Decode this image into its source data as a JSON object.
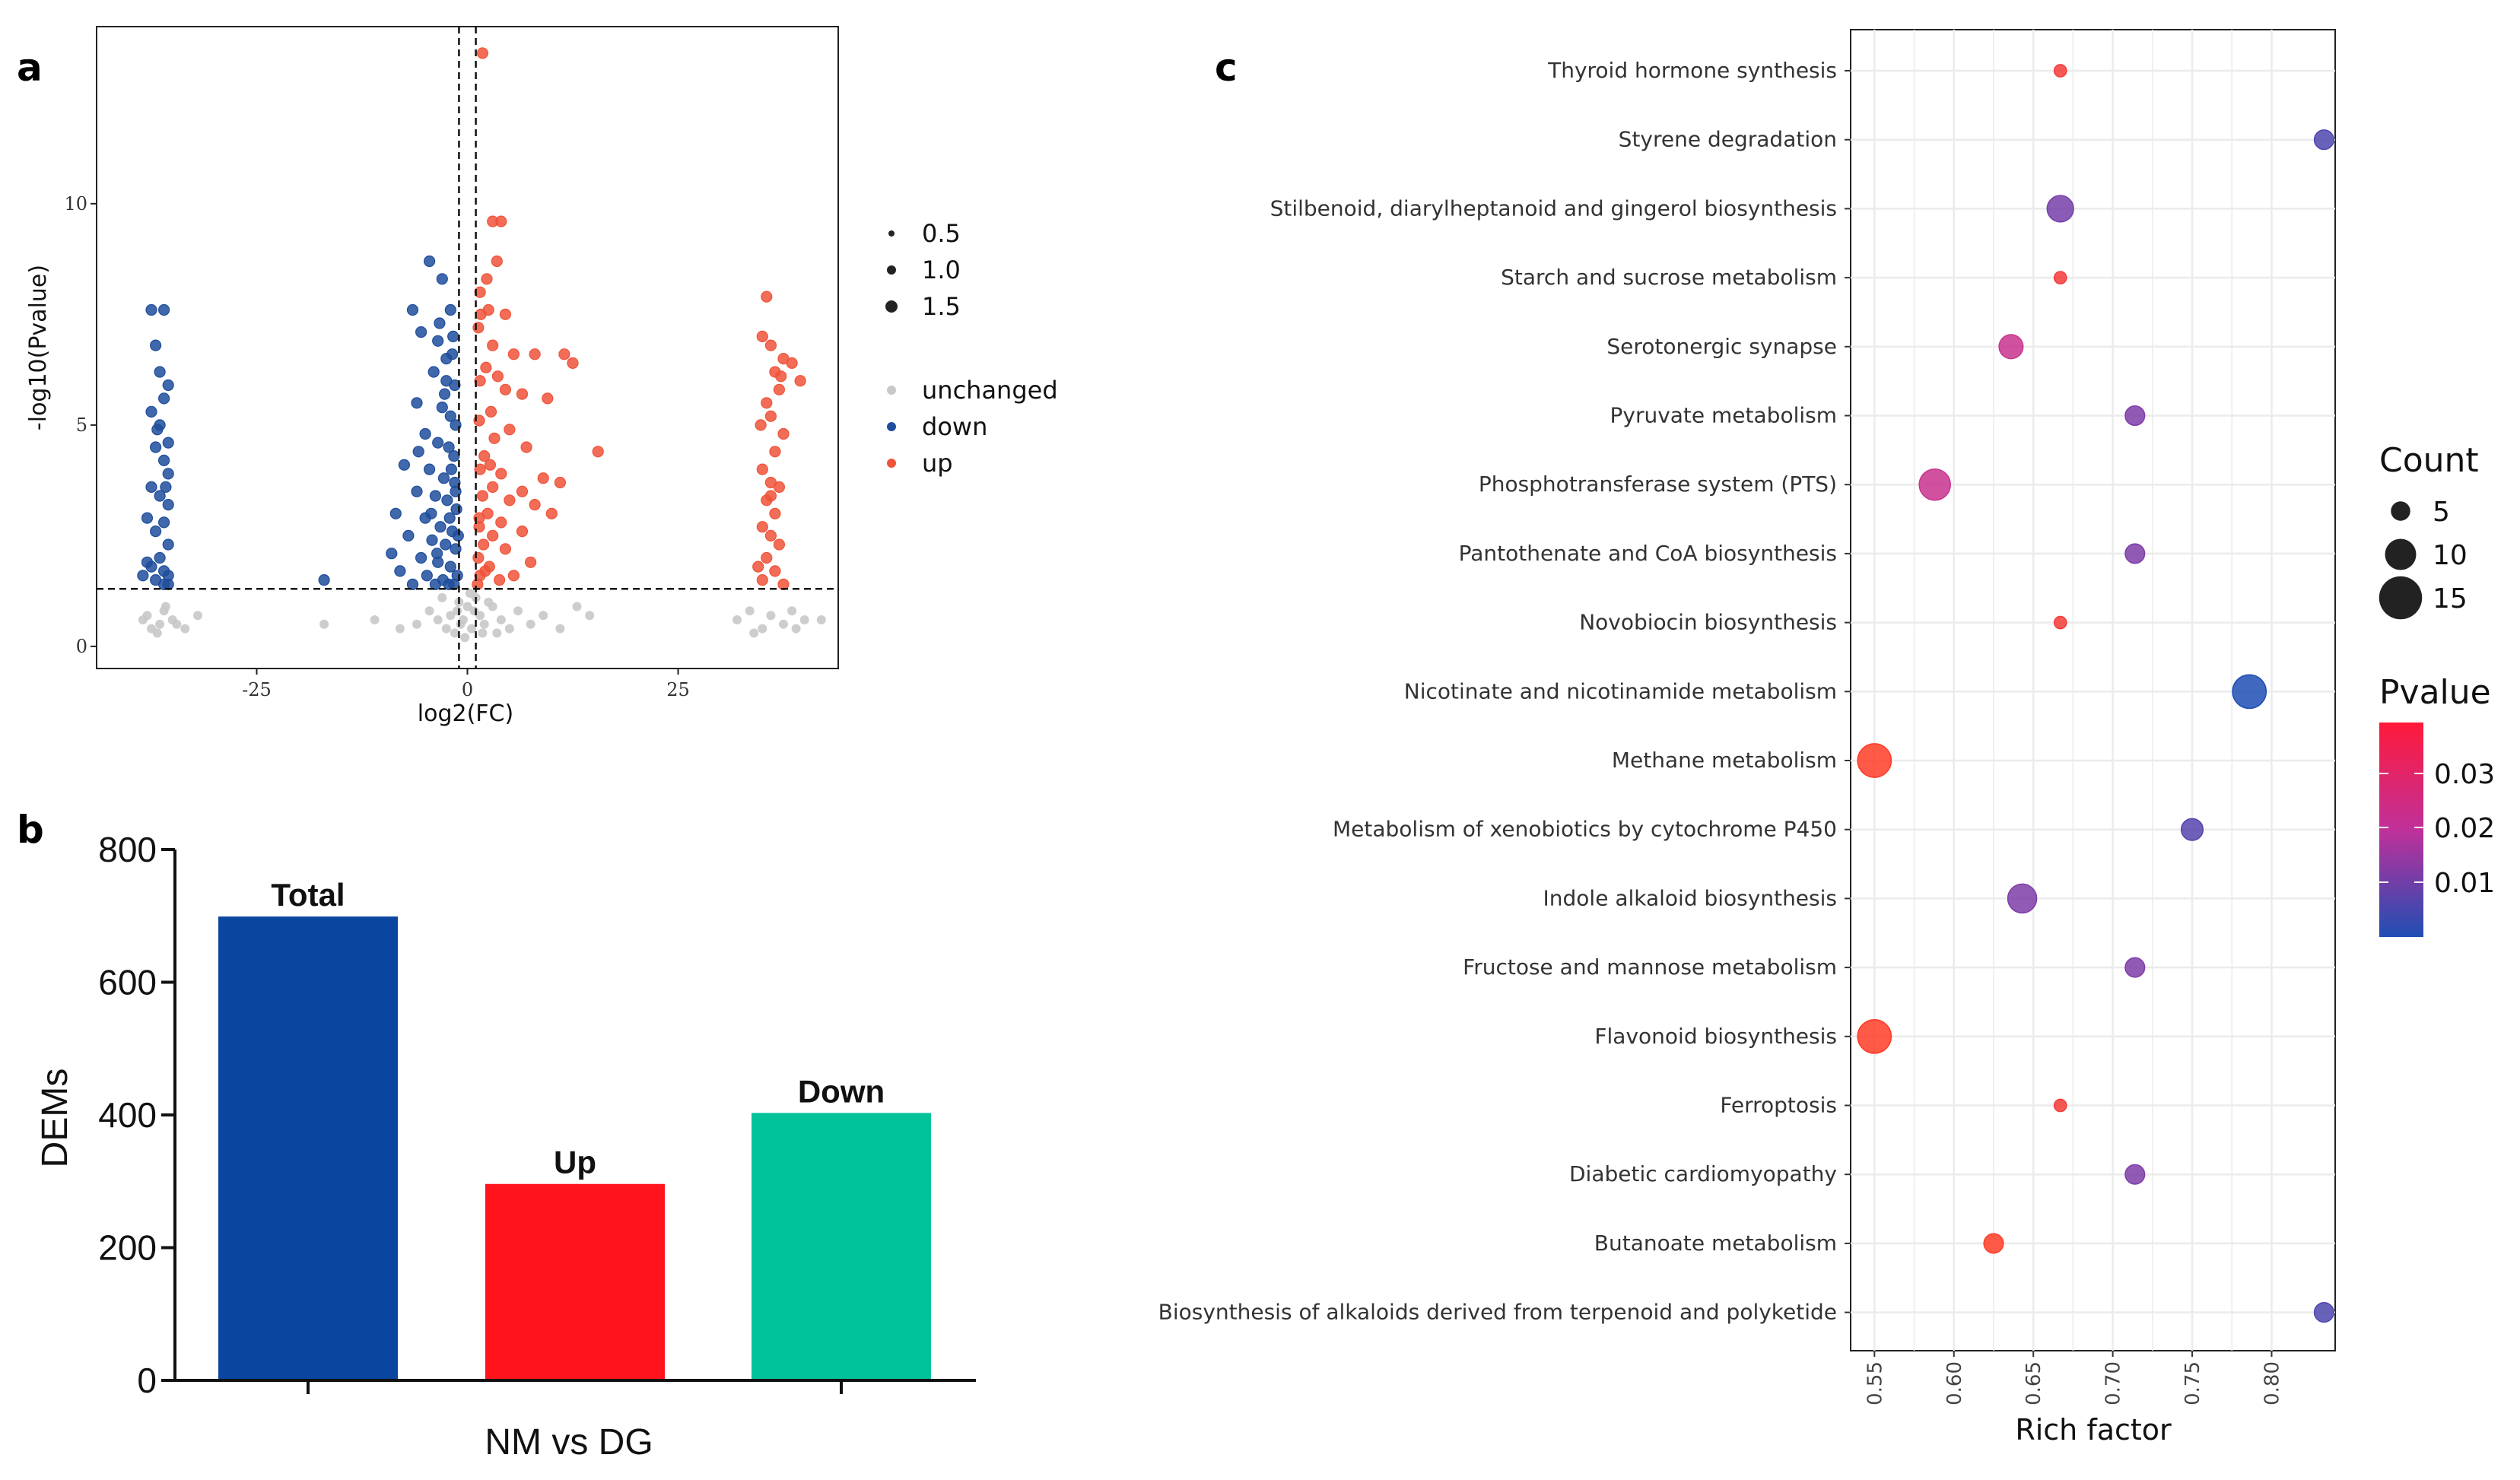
{
  "panel_labels": {
    "a": "a",
    "b": "b",
    "c": "c"
  },
  "chart_data": [
    {
      "type": "scatter",
      "panel": "a",
      "xlabel": "log2(FC)",
      "ylabel": "-log10(Pvalue)",
      "xlim": [
        -44,
        44
      ],
      "ylim": [
        -0.5,
        14
      ],
      "xticks": [
        -25,
        0,
        25
      ],
      "yticks": [
        0,
        5,
        10
      ],
      "threshold_lines": {
        "vertical": [
          -1,
          1
        ],
        "horizontal": 1.3
      },
      "size_legend": [
        "0.5",
        "1.0",
        "1.5"
      ],
      "color_legend": [
        {
          "label": "unchanged",
          "color": "#c8c8c8"
        },
        {
          "label": "down",
          "color": "#1f4e9c"
        },
        {
          "label": "up",
          "color": "#f0533a"
        }
      ],
      "series": [
        {
          "name": "down",
          "color": "#1f4e9c",
          "points": [
            [
              -37.5,
              7.6
            ],
            [
              -36,
              7.6
            ],
            [
              -37,
              6.8
            ],
            [
              -36.5,
              6.2
            ],
            [
              -35.5,
              5.9
            ],
            [
              -36,
              5.6
            ],
            [
              -37.5,
              5.3
            ],
            [
              -36.5,
              5.0
            ],
            [
              -35.5,
              4.6
            ],
            [
              -37,
              4.5
            ],
            [
              -36,
              4.2
            ],
            [
              -35.5,
              3.9
            ],
            [
              -37.5,
              3.6
            ],
            [
              -36.5,
              3.4
            ],
            [
              -35.5,
              3.2
            ],
            [
              -38,
              2.9
            ],
            [
              -36,
              2.8
            ],
            [
              -37,
              2.6
            ],
            [
              -35.5,
              2.3
            ],
            [
              -36.5,
              2.0
            ],
            [
              -37.5,
              1.8
            ],
            [
              -36,
              1.7
            ],
            [
              -35.5,
              1.6
            ],
            [
              -38.5,
              1.6
            ],
            [
              -37,
              1.5
            ],
            [
              -36,
              1.4
            ],
            [
              -35.5,
              1.4
            ],
            [
              -38,
              1.9
            ],
            [
              -36.8,
              4.9
            ],
            [
              -35.8,
              3.6
            ],
            [
              -17,
              1.5
            ],
            [
              -6.5,
              7.6
            ],
            [
              -4.5,
              8.7
            ],
            [
              -3,
              8.3
            ],
            [
              -2,
              7.6
            ],
            [
              -5.5,
              7.1
            ],
            [
              -3.5,
              6.9
            ],
            [
              -1.8,
              6.6
            ],
            [
              -4,
              6.2
            ],
            [
              -2.5,
              6.0
            ],
            [
              -1.5,
              5.9
            ],
            [
              -6,
              5.5
            ],
            [
              -3,
              5.4
            ],
            [
              -2,
              5.2
            ],
            [
              -1.4,
              5.0
            ],
            [
              -5,
              4.8
            ],
            [
              -3.5,
              4.6
            ],
            [
              -2.2,
              4.5
            ],
            [
              -1.6,
              4.3
            ],
            [
              -7.5,
              4.1
            ],
            [
              -4.5,
              4.0
            ],
            [
              -2.8,
              3.8
            ],
            [
              -1.5,
              3.7
            ],
            [
              -6,
              3.5
            ],
            [
              -3.8,
              3.4
            ],
            [
              -2.4,
              3.3
            ],
            [
              -1.3,
              3.1
            ],
            [
              -8.5,
              3.0
            ],
            [
              -5,
              2.9
            ],
            [
              -3.2,
              2.7
            ],
            [
              -1.8,
              2.6
            ],
            [
              -7,
              2.5
            ],
            [
              -4.2,
              2.4
            ],
            [
              -2.6,
              2.3
            ],
            [
              -1.4,
              2.2
            ],
            [
              -9,
              2.1
            ],
            [
              -5.5,
              2.0
            ],
            [
              -3.5,
              1.9
            ],
            [
              -2,
              1.8
            ],
            [
              -8,
              1.7
            ],
            [
              -4.8,
              1.6
            ],
            [
              -2.9,
              1.5
            ],
            [
              -1.6,
              1.4
            ],
            [
              -6.5,
              1.4
            ],
            [
              -3.8,
              1.4
            ],
            [
              -2.2,
              1.4
            ],
            [
              -1.2,
              1.6
            ],
            [
              -1.9,
              4.0
            ],
            [
              -2.7,
              5.7
            ],
            [
              -3.3,
              7.3
            ],
            [
              -1.7,
              7.0
            ],
            [
              -4.3,
              3.0
            ],
            [
              -2.1,
              2.9
            ],
            [
              -1.1,
              2.5
            ],
            [
              -5.8,
              4.4
            ],
            [
              -2.5,
              6.5
            ],
            [
              -1.4,
              3.5
            ],
            [
              -3.6,
              2.1
            ]
          ]
        },
        {
          "name": "up",
          "color": "#f0533a",
          "points": [
            [
              1.8,
              13.4
            ],
            [
              3,
              9.6
            ],
            [
              4,
              9.6
            ],
            [
              3.5,
              8.7
            ],
            [
              1.5,
              8.0
            ],
            [
              2.5,
              7.6
            ],
            [
              4.5,
              7.5
            ],
            [
              1.3,
              7.2
            ],
            [
              3,
              6.8
            ],
            [
              5.5,
              6.6
            ],
            [
              8,
              6.6
            ],
            [
              11.5,
              6.6
            ],
            [
              12.5,
              6.4
            ],
            [
              2.2,
              6.3
            ],
            [
              1.5,
              6.0
            ],
            [
              4.5,
              5.8
            ],
            [
              6.5,
              5.7
            ],
            [
              9.5,
              5.6
            ],
            [
              2.8,
              5.3
            ],
            [
              1.4,
              5.1
            ],
            [
              5,
              4.9
            ],
            [
              3.2,
              4.7
            ],
            [
              7,
              4.5
            ],
            [
              15.5,
              4.4
            ],
            [
              2,
              4.3
            ],
            [
              1.5,
              4.0
            ],
            [
              4,
              3.9
            ],
            [
              9,
              3.8
            ],
            [
              11,
              3.7
            ],
            [
              3,
              3.6
            ],
            [
              6.5,
              3.5
            ],
            [
              1.8,
              3.4
            ],
            [
              5,
              3.3
            ],
            [
              8,
              3.2
            ],
            [
              2.4,
              3.0
            ],
            [
              10,
              3.0
            ],
            [
              4,
              2.8
            ],
            [
              1.4,
              2.7
            ],
            [
              6.5,
              2.6
            ],
            [
              3,
              2.5
            ],
            [
              1.9,
              2.3
            ],
            [
              4.5,
              2.2
            ],
            [
              1.3,
              2.0
            ],
            [
              7.5,
              1.9
            ],
            [
              2.6,
              1.8
            ],
            [
              1.5,
              1.6
            ],
            [
              3.8,
              1.5
            ],
            [
              1.2,
              1.4
            ],
            [
              5.5,
              1.6
            ],
            [
              2.1,
              1.7
            ],
            [
              1.6,
              7.5
            ],
            [
              2.7,
              4.1
            ],
            [
              1.4,
              2.9
            ],
            [
              3.6,
              6.1
            ],
            [
              2.3,
              8.3
            ],
            [
              35.5,
              7.9
            ],
            [
              35,
              7.0
            ],
            [
              36,
              6.8
            ],
            [
              37.5,
              6.5
            ],
            [
              38.5,
              6.4
            ],
            [
              36.5,
              6.2
            ],
            [
              39.5,
              6.0
            ],
            [
              37,
              5.8
            ],
            [
              35.5,
              5.5
            ],
            [
              36,
              5.2
            ],
            [
              37.5,
              4.8
            ],
            [
              36.5,
              4.4
            ],
            [
              35,
              4.0
            ],
            [
              36,
              3.7
            ],
            [
              37,
              3.6
            ],
            [
              35.5,
              3.3
            ],
            [
              36.5,
              3.0
            ],
            [
              35,
              2.7
            ],
            [
              36,
              2.5
            ],
            [
              37,
              2.3
            ],
            [
              35.5,
              2.0
            ],
            [
              34.5,
              1.8
            ],
            [
              36.5,
              1.7
            ],
            [
              35,
              1.5
            ],
            [
              37.5,
              1.4
            ],
            [
              36,
              3.4
            ],
            [
              34.8,
              5.0
            ],
            [
              37.2,
              6.1
            ]
          ]
        },
        {
          "name": "unchanged",
          "color": "#c8c8c8",
          "points": [
            [
              -38,
              0.7
            ],
            [
              -36.5,
              0.5
            ],
            [
              -35,
              0.6
            ],
            [
              -37.5,
              0.4
            ],
            [
              -36,
              0.8
            ],
            [
              -34.5,
              0.5
            ],
            [
              -38.5,
              0.6
            ],
            [
              -33.5,
              0.4
            ],
            [
              -36.8,
              0.3
            ],
            [
              -35.8,
              0.9
            ],
            [
              -32,
              0.7
            ],
            [
              -17,
              0.5
            ],
            [
              -11,
              0.6
            ],
            [
              -8,
              0.4
            ],
            [
              -6,
              0.5
            ],
            [
              -4.5,
              0.8
            ],
            [
              -3,
              1.1
            ],
            [
              -2,
              0.7
            ],
            [
              -1.5,
              0.3
            ],
            [
              -1,
              1.0
            ],
            [
              -0.5,
              0.6
            ],
            [
              0,
              0.9
            ],
            [
              0.5,
              0.4
            ],
            [
              1,
              1.1
            ],
            [
              1.5,
              0.7
            ],
            [
              2,
              0.5
            ],
            [
              3,
              0.9
            ],
            [
              4,
              0.6
            ],
            [
              5,
              0.4
            ],
            [
              6,
              0.8
            ],
            [
              7.5,
              0.5
            ],
            [
              9,
              0.7
            ],
            [
              11,
              0.4
            ],
            [
              13,
              0.9
            ],
            [
              14.5,
              0.7
            ],
            [
              -2.5,
              0.4
            ],
            [
              -0.8,
              0.5
            ],
            [
              0.8,
              0.8
            ],
            [
              2.5,
              1.0
            ],
            [
              -1.2,
              0.8
            ],
            [
              0.3,
              1.2
            ],
            [
              -0.3,
              0.2
            ],
            [
              1.8,
              0.3
            ],
            [
              -3.5,
              0.6
            ],
            [
              3.5,
              0.3
            ],
            [
              32,
              0.6
            ],
            [
              33.5,
              0.8
            ],
            [
              35,
              0.4
            ],
            [
              36,
              0.7
            ],
            [
              37.5,
              0.5
            ],
            [
              38.5,
              0.8
            ],
            [
              40,
              0.6
            ],
            [
              42,
              0.6
            ],
            [
              34,
              0.3
            ],
            [
              39,
              0.4
            ]
          ]
        }
      ]
    },
    {
      "type": "bar",
      "panel": "b",
      "xlabel": "NM vs DG",
      "ylabel": "DEMs",
      "ylim": [
        0,
        800
      ],
      "yticks": [
        0,
        200,
        400,
        600,
        800
      ],
      "categories": [
        "Total",
        "Up",
        "Down"
      ],
      "values": [
        699,
        296,
        403
      ],
      "colors": [
        "#0a46a0",
        "#ff141e",
        "#00c39a"
      ]
    },
    {
      "type": "scatter",
      "panel": "c",
      "xlabel": "Rich factor",
      "ylabel": "",
      "xlim": [
        0.535,
        0.84
      ],
      "xticks": [
        "0.55",
        "0.60",
        "0.65",
        "0.70",
        "0.75",
        "0.80"
      ],
      "pathways": [
        "Thyroid hormone synthesis",
        "Styrene degradation",
        "Stilbenoid, diarylheptanoid and gingerol biosynthesis",
        "Starch and sucrose metabolism",
        "Serotonergic synapse",
        "Pyruvate metabolism",
        "Phosphotransferase system (PTS)",
        "Pantothenate and CoA biosynthesis",
        "Novobiocin biosynthesis",
        "Nicotinate and nicotinamide metabolism",
        "Methane metabolism",
        "Metabolism of xenobiotics by cytochrome P450",
        "Indole alkaloid biosynthesis",
        "Fructose and mannose metabolism",
        "Flavonoid biosynthesis",
        "Ferroptosis",
        "Diabetic cardiomyopathy",
        "Butanoate metabolism",
        "Biosynthesis of alkaloids derived from terpenoid and polyketide"
      ],
      "rich_factor": [
        0.667,
        0.833,
        0.667,
        0.667,
        0.636,
        0.714,
        0.588,
        0.714,
        0.667,
        0.786,
        0.55,
        0.75,
        0.643,
        0.714,
        0.55,
        0.667,
        0.714,
        0.625,
        0.833
      ],
      "count": [
        2,
        5,
        8,
        2,
        7,
        5,
        10,
        5,
        2,
        11,
        11,
        6,
        9,
        5,
        11,
        2,
        5,
        5,
        5
      ],
      "pvalue": [
        0.039,
        0.008,
        0.013,
        0.039,
        0.025,
        0.014,
        0.025,
        0.014,
        0.039,
        0.002,
        0.042,
        0.009,
        0.014,
        0.014,
        0.042,
        0.039,
        0.014,
        0.042,
        0.008
      ],
      "count_legend": {
        "title": "Count",
        "values": [
          5,
          10,
          15
        ]
      },
      "pvalue_legend": {
        "title": "Pvalue",
        "ticks": [
          "0.03",
          "0.02",
          "0.01"
        ],
        "low_color": "#1f4eb4",
        "high_color": "#ff1a3a"
      }
    }
  ]
}
